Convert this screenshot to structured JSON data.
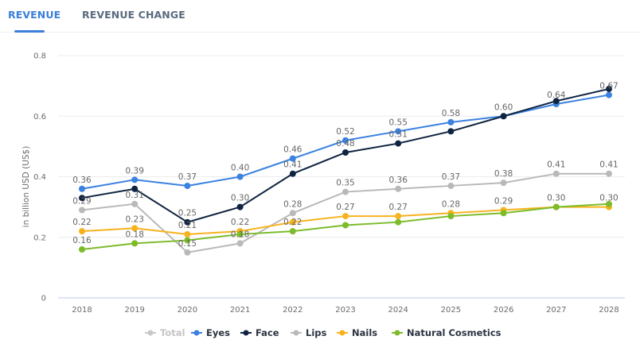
{
  "tabs": [
    {
      "label": "REVENUE",
      "active": true
    },
    {
      "label": "REVENUE CHANGE",
      "active": false
    }
  ],
  "chart_data": {
    "type": "line",
    "title": "",
    "xlabel": "",
    "ylabel": "in billion USD (US$)",
    "ylim": [
      0,
      0.8
    ],
    "yticks": [
      0,
      0.2,
      0.4,
      0.6,
      0.8
    ],
    "ytick_labels": [
      "0",
      "0.2",
      "0.4",
      "0.6",
      "0.8"
    ],
    "grid": true,
    "legend_position": "bottom-center",
    "x": [
      "2018",
      "2019",
      "2020",
      "2021",
      "2022",
      "2023",
      "2024",
      "2025",
      "2026",
      "2027",
      "2028"
    ],
    "series": [
      {
        "name": "Total",
        "color": "#c8c8c8",
        "hidden": true,
        "values": []
      },
      {
        "name": "Eyes",
        "color": "#3b82e0",
        "values": [
          0.36,
          0.39,
          0.37,
          0.4,
          0.46,
          0.52,
          0.55,
          0.58,
          0.6,
          0.64,
          0.67
        ],
        "labels": [
          "0.36",
          "0.39",
          "0.37",
          "0.40",
          "0.46",
          "0.52",
          "0.55",
          "0.58",
          "",
          "0.64",
          "0.67"
        ]
      },
      {
        "name": "Face",
        "color": "#0f2440",
        "values": [
          0.33,
          0.36,
          0.25,
          0.3,
          0.41,
          0.48,
          0.51,
          0.55,
          0.6,
          0.65,
          0.69
        ],
        "labels": [
          "",
          "",
          "0.25",
          "0.30",
          "0.41",
          "0.48",
          "0.51",
          "",
          "0.60",
          "",
          ""
        ]
      },
      {
        "name": "Lips",
        "color": "#b9b9b9",
        "values": [
          0.29,
          0.31,
          0.15,
          0.18,
          0.28,
          0.35,
          0.36,
          0.37,
          0.38,
          0.41,
          0.41
        ],
        "labels": [
          "0.29",
          "0.31",
          "0.15",
          "0.18",
          "0.28",
          "0.35",
          "0.36",
          "0.37",
          "0.38",
          "0.41",
          "0.41"
        ]
      },
      {
        "name": "Nails",
        "color": "#f7b21e",
        "values": [
          0.22,
          0.23,
          0.21,
          0.22,
          0.25,
          0.27,
          0.27,
          0.28,
          0.29,
          0.3,
          0.3
        ],
        "labels": [
          "0.22",
          "0.23",
          "0.21",
          "0.22",
          "",
          "0.27",
          "0.27",
          "0.28",
          "0.29",
          "0.30",
          "0.30"
        ]
      },
      {
        "name": "Natural Cosmetics",
        "color": "#7cbb2a",
        "values": [
          0.16,
          0.18,
          0.19,
          0.21,
          0.22,
          0.24,
          0.25,
          0.27,
          0.28,
          0.3,
          0.31
        ],
        "labels": [
          "0.16",
          "0.18",
          "",
          "",
          "0.22",
          "",
          "",
          "",
          "",
          "",
          ""
        ]
      }
    ]
  }
}
